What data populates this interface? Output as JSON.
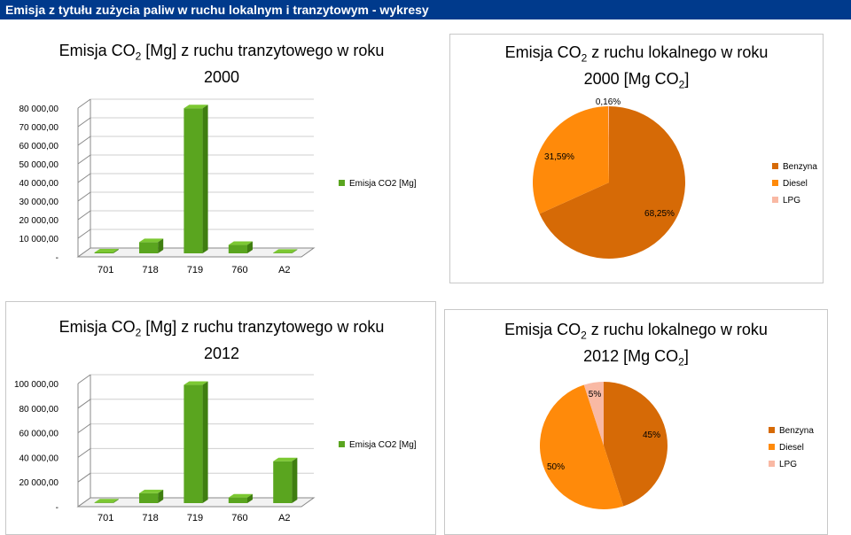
{
  "window": {
    "title": "Emisja z tytułu zużycia paliw w ruchu lokalnym i tranzytowym - wykresy"
  },
  "colors": {
    "bar": "#5aa51f",
    "bar_top": "#7cc832",
    "bar_side": "#3f7e10",
    "benzyna": "#d66a06",
    "diesel": "#ff8a0a",
    "lpg": "#f9b9a4",
    "header": "#003a8c"
  },
  "chart_data": [
    {
      "type": "bar",
      "title_main": "Emisja CO",
      "title_sub": "2",
      "title_rest": " [Mg] z ruchu tranzytowego w roku",
      "title_line2": "2000",
      "categories": [
        "701",
        "718",
        "719",
        "760",
        "A2"
      ],
      "series": [
        {
          "name": "Emisja CO2 [Mg]",
          "values": [
            500,
            6000,
            78000,
            4500,
            300
          ]
        }
      ],
      "ylim": [
        0,
        80000
      ],
      "yticks": [
        "-",
        "10 000,00",
        "20 000,00",
        "30 000,00",
        "40 000,00",
        "50 000,00",
        "60 000,00",
        "70 000,00",
        "80 000,00"
      ],
      "legend": "right"
    },
    {
      "type": "pie",
      "title_main": "Emisja CO",
      "title_sub": "2",
      "title_rest": " z ruchu lokalnego w roku",
      "title_line2": "2000 [Mg CO",
      "title_line2_sub": "2",
      "title_line2_end": "]",
      "slices": [
        {
          "name": "Benzyna",
          "value": 68.25,
          "label": "68,25%"
        },
        {
          "name": "Diesel",
          "value": 31.59,
          "label": "31,59%"
        },
        {
          "name": "LPG",
          "value": 0.16,
          "label": "0,16%"
        }
      ],
      "legend": "right"
    },
    {
      "type": "bar",
      "title_main": "Emisja CO",
      "title_sub": "2",
      "title_rest": " [Mg] z ruchu tranzytowego w roku",
      "title_line2": "2012",
      "categories": [
        "701",
        "718",
        "719",
        "760",
        "A2"
      ],
      "series": [
        {
          "name": "Emisja CO2 [Mg]",
          "values": [
            500,
            8000,
            96000,
            4500,
            34000
          ]
        }
      ],
      "ylim": [
        0,
        100000
      ],
      "yticks": [
        "-",
        "20 000,00",
        "40 000,00",
        "60 000,00",
        "80 000,00",
        "100 000,00"
      ],
      "legend": "right"
    },
    {
      "type": "pie",
      "title_main": "Emisja CO",
      "title_sub": "2",
      "title_rest": " z ruchu lokalnego w roku",
      "title_line2": "2012 [Mg CO",
      "title_line2_sub": "2",
      "title_line2_end": "]",
      "slices": [
        {
          "name": "Benzyna",
          "value": 45,
          "label": "45%"
        },
        {
          "name": "Diesel",
          "value": 50,
          "label": "50%"
        },
        {
          "name": "LPG",
          "value": 5,
          "label": "5%"
        }
      ],
      "legend": "right"
    }
  ]
}
